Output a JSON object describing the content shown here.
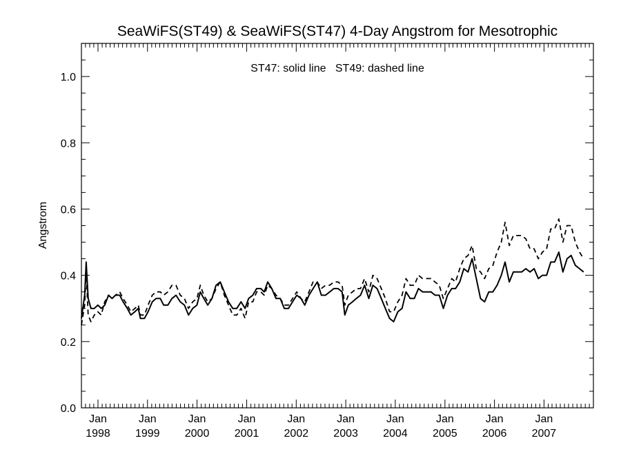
{
  "chart_data": {
    "type": "line",
    "title": "SeaWiFS(ST49) & SeaWiFS(ST47) 4-Day Angstrom for Mesotrophic",
    "ylabel": "Angstrom",
    "annotation": "ST47: solid line   ST49: dashed line",
    "ylim": [
      0.0,
      1.1
    ],
    "yticks": [
      0.0,
      0.2,
      0.4,
      0.6,
      0.8,
      1.0
    ],
    "ytick_labels": [
      "0.0",
      "0.2",
      "0.4",
      "0.6",
      "0.8",
      "1.0"
    ],
    "xlim": [
      "1997-09-01",
      "2007-12-31"
    ],
    "xticks": [
      {
        "date": "1998-01-01",
        "month": "Jan",
        "year": "1998"
      },
      {
        "date": "1999-01-01",
        "month": "Jan",
        "year": "1999"
      },
      {
        "date": "2000-01-01",
        "month": "Jan",
        "year": "2000"
      },
      {
        "date": "2001-01-01",
        "month": "Jan",
        "year": "2001"
      },
      {
        "date": "2002-01-01",
        "month": "Jan",
        "year": "2002"
      },
      {
        "date": "2003-01-01",
        "month": "Jan",
        "year": "2003"
      },
      {
        "date": "2004-01-01",
        "month": "Jan",
        "year": "2004"
      },
      {
        "date": "2005-01-01",
        "month": "Jan",
        "year": "2005"
      },
      {
        "date": "2006-01-01",
        "month": "Jan",
        "year": "2006"
      },
      {
        "date": "2007-01-01",
        "month": "Jan",
        "year": "2007"
      }
    ],
    "grid": false,
    "series": [
      {
        "style": "solid",
        "points": [
          [
            "1997-09-01",
            0.27
          ],
          [
            "1997-09-25",
            0.34
          ],
          [
            "1997-10-06",
            0.44
          ],
          [
            "1997-10-21",
            0.33
          ],
          [
            "1997-11-10",
            0.3
          ],
          [
            "1997-12-05",
            0.3
          ],
          [
            "1997-12-31",
            0.31
          ],
          [
            "1998-01-25",
            0.3
          ],
          [
            "1998-02-20",
            0.31
          ],
          [
            "1998-03-20",
            0.34
          ],
          [
            "1998-04-15",
            0.33
          ],
          [
            "1998-05-10",
            0.34
          ],
          [
            "1998-06-10",
            0.34
          ],
          [
            "1998-07-05",
            0.32
          ],
          [
            "1998-08-05",
            0.3
          ],
          [
            "1998-08-31",
            0.28
          ],
          [
            "1998-09-30",
            0.29
          ],
          [
            "1998-10-25",
            0.3
          ],
          [
            "1998-11-10",
            0.27
          ],
          [
            "1998-12-10",
            0.27
          ],
          [
            "1999-01-05",
            0.29
          ],
          [
            "1999-02-05",
            0.32
          ],
          [
            "1999-03-05",
            0.33
          ],
          [
            "1999-04-05",
            0.33
          ],
          [
            "1999-04-30",
            0.31
          ],
          [
            "1999-05-31",
            0.31
          ],
          [
            "1999-06-30",
            0.33
          ],
          [
            "1999-07-30",
            0.34
          ],
          [
            "1999-08-30",
            0.32
          ],
          [
            "1999-09-30",
            0.31
          ],
          [
            "1999-10-30",
            0.28
          ],
          [
            "1999-11-30",
            0.3
          ],
          [
            "1999-12-31",
            0.31
          ],
          [
            "2000-01-25",
            0.35
          ],
          [
            "2000-02-20",
            0.33
          ],
          [
            "2000-03-20",
            0.31
          ],
          [
            "2000-04-20",
            0.33
          ],
          [
            "2000-05-20",
            0.37
          ],
          [
            "2000-06-20",
            0.38
          ],
          [
            "2000-07-20",
            0.35
          ],
          [
            "2000-08-20",
            0.32
          ],
          [
            "2000-09-20",
            0.3
          ],
          [
            "2000-10-20",
            0.3
          ],
          [
            "2000-11-20",
            0.32
          ],
          [
            "2000-12-20",
            0.3
          ],
          [
            "2001-01-15",
            0.33
          ],
          [
            "2001-02-15",
            0.34
          ],
          [
            "2001-03-15",
            0.36
          ],
          [
            "2001-04-15",
            0.36
          ],
          [
            "2001-05-10",
            0.35
          ],
          [
            "2001-06-05",
            0.38
          ],
          [
            "2001-07-05",
            0.36
          ],
          [
            "2001-08-05",
            0.33
          ],
          [
            "2001-09-05",
            0.33
          ],
          [
            "2001-10-05",
            0.3
          ],
          [
            "2001-11-05",
            0.3
          ],
          [
            "2001-12-05",
            0.32
          ],
          [
            "2002-01-05",
            0.34
          ],
          [
            "2002-02-05",
            0.33
          ],
          [
            "2002-03-05",
            0.31
          ],
          [
            "2002-04-05",
            0.34
          ],
          [
            "2002-05-05",
            0.36
          ],
          [
            "2002-06-05",
            0.38
          ],
          [
            "2002-07-05",
            0.34
          ],
          [
            "2002-08-05",
            0.34
          ],
          [
            "2002-09-05",
            0.35
          ],
          [
            "2002-10-05",
            0.36
          ],
          [
            "2002-11-05",
            0.36
          ],
          [
            "2002-12-05",
            0.35
          ],
          [
            "2002-12-25",
            0.28
          ],
          [
            "2003-01-20",
            0.31
          ],
          [
            "2003-02-20",
            0.32
          ],
          [
            "2003-03-20",
            0.33
          ],
          [
            "2003-04-20",
            0.34
          ],
          [
            "2003-05-20",
            0.37
          ],
          [
            "2003-06-20",
            0.33
          ],
          [
            "2003-07-20",
            0.37
          ],
          [
            "2003-08-20",
            0.36
          ],
          [
            "2003-09-20",
            0.33
          ],
          [
            "2003-10-20",
            0.3
          ],
          [
            "2003-11-20",
            0.27
          ],
          [
            "2003-12-20",
            0.26
          ],
          [
            "2004-01-20",
            0.29
          ],
          [
            "2004-02-20",
            0.3
          ],
          [
            "2004-03-20",
            0.35
          ],
          [
            "2004-04-20",
            0.33
          ],
          [
            "2004-05-20",
            0.33
          ],
          [
            "2004-06-20",
            0.36
          ],
          [
            "2004-07-20",
            0.35
          ],
          [
            "2004-08-20",
            0.35
          ],
          [
            "2004-09-20",
            0.35
          ],
          [
            "2004-10-20",
            0.34
          ],
          [
            "2004-11-20",
            0.34
          ],
          [
            "2004-12-20",
            0.3
          ],
          [
            "2005-01-20",
            0.34
          ],
          [
            "2005-02-20",
            0.36
          ],
          [
            "2005-03-20",
            0.36
          ],
          [
            "2005-04-20",
            0.38
          ],
          [
            "2005-05-20",
            0.42
          ],
          [
            "2005-06-20",
            0.41
          ],
          [
            "2005-07-20",
            0.45
          ],
          [
            "2005-08-20",
            0.39
          ],
          [
            "2005-09-20",
            0.33
          ],
          [
            "2005-10-20",
            0.32
          ],
          [
            "2005-11-20",
            0.35
          ],
          [
            "2005-12-20",
            0.35
          ],
          [
            "2006-01-20",
            0.37
          ],
          [
            "2006-02-20",
            0.4
          ],
          [
            "2006-03-20",
            0.44
          ],
          [
            "2006-04-20",
            0.38
          ],
          [
            "2006-05-20",
            0.41
          ],
          [
            "2006-06-20",
            0.41
          ],
          [
            "2006-07-20",
            0.41
          ],
          [
            "2006-08-20",
            0.42
          ],
          [
            "2006-09-20",
            0.41
          ],
          [
            "2006-10-20",
            0.42
          ],
          [
            "2006-11-20",
            0.39
          ],
          [
            "2006-12-20",
            0.4
          ],
          [
            "2007-01-20",
            0.4
          ],
          [
            "2007-02-20",
            0.44
          ],
          [
            "2007-03-20",
            0.44
          ],
          [
            "2007-04-20",
            0.47
          ],
          [
            "2007-05-20",
            0.41
          ],
          [
            "2007-06-20",
            0.45
          ],
          [
            "2007-07-20",
            0.46
          ],
          [
            "2007-08-20",
            0.43
          ],
          [
            "2007-09-20",
            0.42
          ],
          [
            "2007-10-20",
            0.41
          ]
        ]
      },
      {
        "style": "dashed",
        "points": [
          [
            "1997-09-01",
            0.25
          ],
          [
            "1997-09-25",
            0.31
          ],
          [
            "1997-10-06",
            0.41
          ],
          [
            "1997-10-21",
            0.28
          ],
          [
            "1997-11-10",
            0.26
          ],
          [
            "1997-12-05",
            0.28
          ],
          [
            "1997-12-31",
            0.29
          ],
          [
            "1998-01-25",
            0.28
          ],
          [
            "1998-02-20",
            0.32
          ],
          [
            "1998-03-20",
            0.34
          ],
          [
            "1998-04-15",
            0.33
          ],
          [
            "1998-05-10",
            0.34
          ],
          [
            "1998-06-10",
            0.35
          ],
          [
            "1998-07-05",
            0.33
          ],
          [
            "1998-08-05",
            0.31
          ],
          [
            "1998-08-31",
            0.29
          ],
          [
            "1998-09-30",
            0.3
          ],
          [
            "1998-10-25",
            0.31
          ],
          [
            "1998-11-10",
            0.28
          ],
          [
            "1998-12-10",
            0.28
          ],
          [
            "1999-01-05",
            0.31
          ],
          [
            "1999-02-05",
            0.34
          ],
          [
            "1999-03-05",
            0.35
          ],
          [
            "1999-04-05",
            0.35
          ],
          [
            "1999-04-30",
            0.34
          ],
          [
            "1999-05-31",
            0.35
          ],
          [
            "1999-06-30",
            0.37
          ],
          [
            "1999-07-30",
            0.37
          ],
          [
            "1999-08-30",
            0.34
          ],
          [
            "1999-09-30",
            0.33
          ],
          [
            "1999-10-30",
            0.3
          ],
          [
            "1999-11-30",
            0.32
          ],
          [
            "1999-12-31",
            0.33
          ],
          [
            "2000-01-25",
            0.37
          ],
          [
            "2000-02-20",
            0.34
          ],
          [
            "2000-03-20",
            0.32
          ],
          [
            "2000-04-20",
            0.33
          ],
          [
            "2000-05-20",
            0.36
          ],
          [
            "2000-06-20",
            0.38
          ],
          [
            "2000-07-20",
            0.34
          ],
          [
            "2000-08-20",
            0.31
          ],
          [
            "2000-09-20",
            0.28
          ],
          [
            "2000-10-20",
            0.28
          ],
          [
            "2000-11-20",
            0.3
          ],
          [
            "2000-12-20",
            0.27
          ],
          [
            "2001-01-15",
            0.32
          ],
          [
            "2001-02-15",
            0.32
          ],
          [
            "2001-03-15",
            0.35
          ],
          [
            "2001-04-15",
            0.35
          ],
          [
            "2001-05-10",
            0.34
          ],
          [
            "2001-06-05",
            0.37
          ],
          [
            "2001-07-05",
            0.36
          ],
          [
            "2001-08-05",
            0.34
          ],
          [
            "2001-09-05",
            0.33
          ],
          [
            "2001-10-05",
            0.31
          ],
          [
            "2001-11-05",
            0.31
          ],
          [
            "2001-12-05",
            0.33
          ],
          [
            "2002-01-05",
            0.35
          ],
          [
            "2002-02-05",
            0.33
          ],
          [
            "2002-03-05",
            0.32
          ],
          [
            "2002-04-05",
            0.35
          ],
          [
            "2002-05-05",
            0.38
          ],
          [
            "2002-06-05",
            0.38
          ],
          [
            "2002-07-05",
            0.36
          ],
          [
            "2002-08-05",
            0.37
          ],
          [
            "2002-09-05",
            0.37
          ],
          [
            "2002-10-05",
            0.38
          ],
          [
            "2002-11-05",
            0.38
          ],
          [
            "2002-12-05",
            0.37
          ],
          [
            "2002-12-25",
            0.31
          ],
          [
            "2003-01-20",
            0.34
          ],
          [
            "2003-02-20",
            0.35
          ],
          [
            "2003-03-20",
            0.36
          ],
          [
            "2003-04-20",
            0.36
          ],
          [
            "2003-05-20",
            0.39
          ],
          [
            "2003-06-20",
            0.35
          ],
          [
            "2003-07-20",
            0.4
          ],
          [
            "2003-08-20",
            0.39
          ],
          [
            "2003-09-20",
            0.36
          ],
          [
            "2003-10-20",
            0.33
          ],
          [
            "2003-11-20",
            0.29
          ],
          [
            "2003-12-20",
            0.29
          ],
          [
            "2004-01-20",
            0.32
          ],
          [
            "2004-02-20",
            0.34
          ],
          [
            "2004-03-20",
            0.39
          ],
          [
            "2004-04-20",
            0.37
          ],
          [
            "2004-05-20",
            0.37
          ],
          [
            "2004-06-20",
            0.4
          ],
          [
            "2004-07-20",
            0.39
          ],
          [
            "2004-08-20",
            0.39
          ],
          [
            "2004-09-20",
            0.39
          ],
          [
            "2004-10-20",
            0.38
          ],
          [
            "2004-11-20",
            0.37
          ],
          [
            "2004-12-20",
            0.33
          ],
          [
            "2005-01-20",
            0.36
          ],
          [
            "2005-02-20",
            0.39
          ],
          [
            "2005-03-20",
            0.38
          ],
          [
            "2005-04-20",
            0.42
          ],
          [
            "2005-05-20",
            0.45
          ],
          [
            "2005-06-20",
            0.46
          ],
          [
            "2005-07-20",
            0.49
          ],
          [
            "2005-08-20",
            0.42
          ],
          [
            "2005-09-20",
            0.41
          ],
          [
            "2005-10-20",
            0.39
          ],
          [
            "2005-11-20",
            0.42
          ],
          [
            "2005-12-20",
            0.43
          ],
          [
            "2006-01-20",
            0.47
          ],
          [
            "2006-02-20",
            0.5
          ],
          [
            "2006-03-20",
            0.56
          ],
          [
            "2006-04-20",
            0.49
          ],
          [
            "2006-05-20",
            0.52
          ],
          [
            "2006-06-20",
            0.52
          ],
          [
            "2006-07-20",
            0.52
          ],
          [
            "2006-08-20",
            0.51
          ],
          [
            "2006-09-20",
            0.48
          ],
          [
            "2006-10-20",
            0.48
          ],
          [
            "2006-11-20",
            0.45
          ],
          [
            "2006-12-20",
            0.47
          ],
          [
            "2007-01-20",
            0.48
          ],
          [
            "2007-02-20",
            0.54
          ],
          [
            "2007-03-20",
            0.54
          ],
          [
            "2007-04-20",
            0.57
          ],
          [
            "2007-05-20",
            0.5
          ],
          [
            "2007-06-20",
            0.55
          ],
          [
            "2007-07-20",
            0.55
          ],
          [
            "2007-08-20",
            0.5
          ],
          [
            "2007-09-20",
            0.47
          ],
          [
            "2007-10-20",
            0.45
          ]
        ]
      }
    ]
  }
}
